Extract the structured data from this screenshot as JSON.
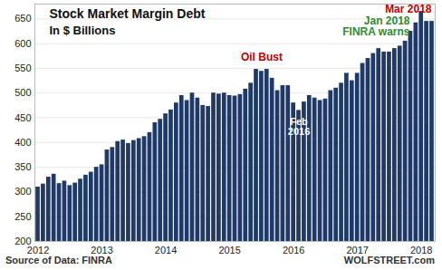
{
  "chart_data": {
    "type": "bar",
    "title": "Stock Market Margin Debt",
    "subtitle": "In $ Billions",
    "categories": [
      "2012",
      null,
      null,
      null,
      null,
      null,
      null,
      null,
      null,
      null,
      null,
      null,
      "2013",
      null,
      null,
      null,
      null,
      null,
      null,
      null,
      null,
      null,
      null,
      null,
      "2014",
      null,
      null,
      null,
      null,
      null,
      null,
      null,
      null,
      null,
      null,
      null,
      "2015",
      null,
      null,
      null,
      null,
      null,
      null,
      null,
      null,
      null,
      null,
      null,
      "2016",
      null,
      null,
      null,
      null,
      null,
      null,
      null,
      null,
      null,
      null,
      null,
      "2017",
      null,
      null,
      null,
      null,
      null,
      null,
      null,
      null,
      null,
      null,
      null,
      "2018",
      null,
      null
    ],
    "values": [
      310,
      316,
      330,
      336,
      317,
      322,
      313,
      318,
      326,
      334,
      340,
      350,
      355,
      385,
      390,
      402,
      405,
      398,
      404,
      408,
      412,
      420,
      440,
      447,
      458,
      466,
      480,
      495,
      485,
      500,
      490,
      475,
      473,
      500,
      498,
      500,
      495,
      494,
      497,
      508,
      520,
      548,
      544,
      548,
      530,
      505,
      515,
      515,
      480,
      465,
      482,
      495,
      490,
      485,
      488,
      505,
      510,
      520,
      540,
      525,
      540,
      560,
      570,
      580,
      590,
      583,
      583,
      590,
      595,
      605,
      625,
      642,
      665,
      645,
      645
    ],
    "color": "#1f3a68",
    "ylim": [
      200,
      680
    ],
    "yticks": [
      200,
      250,
      300,
      350,
      400,
      450,
      500,
      550,
      600,
      650
    ],
    "grid": true,
    "annotations": [
      {
        "text": "Oil Bust",
        "color": "#c00000"
      },
      {
        "text": "Feb\n2016",
        "color": "#ffffff"
      },
      {
        "text": "Jan 2018\nFINRA warns",
        "color": "#2e8b2e"
      },
      {
        "text": "Mar 2018",
        "color": "#c00000"
      }
    ],
    "source": "Source of Data: FINRA",
    "credit": "WOLFSTREET.com"
  }
}
